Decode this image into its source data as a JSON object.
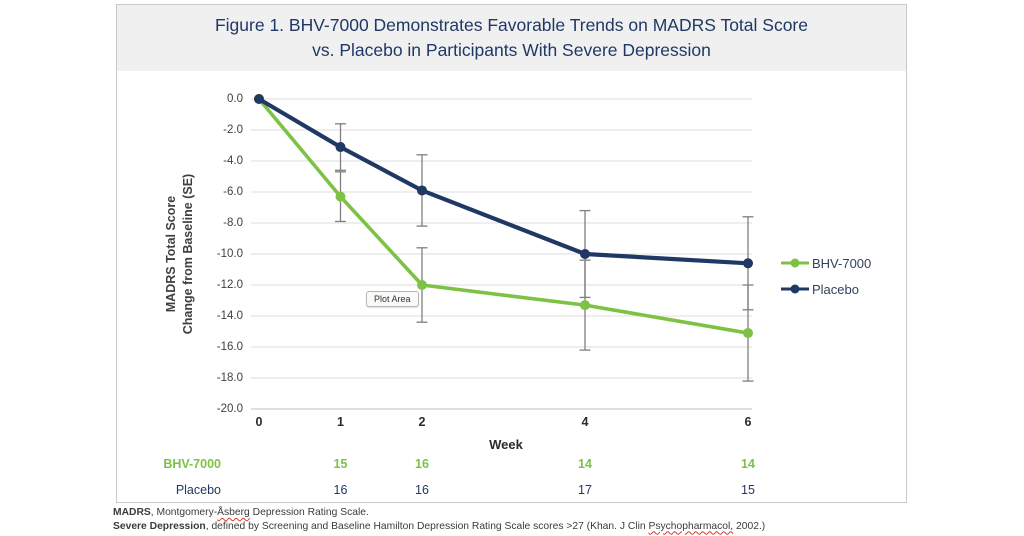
{
  "figure": {
    "title_line1": "Figure 1. BHV-7000 Demonstrates Favorable Trends on MADRS Total Score",
    "title_line2": "vs. Placebo in Participants With Severe Depression"
  },
  "plot_area_tooltip": "Plot Area",
  "chart_data": {
    "type": "line",
    "x": [
      0,
      1,
      2,
      4,
      6
    ],
    "xlabel": "Week",
    "ylabel_line1": "MADRS Total Score",
    "ylabel_line2": "Change from Baseline (SE)",
    "ylim": [
      -20,
      0
    ],
    "ytick_step": 2,
    "grid": "horizontal",
    "legend_position": "right",
    "error_bars": "SE",
    "series": [
      {
        "name": "BHV-7000",
        "color": "#7DC244",
        "values": [
          0,
          -6.3,
          -12.0,
          -13.3,
          -15.1
        ],
        "se": [
          0,
          1.6,
          2.4,
          2.9,
          3.1
        ]
      },
      {
        "name": "Placebo",
        "color": "#1F3864",
        "values": [
          0,
          -3.1,
          -5.9,
          -10.0,
          -10.6
        ],
        "se": [
          0,
          1.5,
          2.3,
          2.8,
          3.0
        ]
      }
    ]
  },
  "counts_table": {
    "weeks": [
      1,
      2,
      4,
      6
    ],
    "rows": [
      {
        "label": "BHV-7000",
        "color": "#7DC244",
        "bold": true,
        "values": [
          15,
          16,
          14,
          14
        ]
      },
      {
        "label": "Placebo",
        "color": "#1F3864",
        "bold": false,
        "values": [
          16,
          16,
          17,
          15
        ]
      }
    ]
  },
  "footnotes": [
    {
      "parts": [
        {
          "text": "MADRS",
          "bold": true
        },
        {
          "text": ", Montgomery-"
        },
        {
          "text": "Åsberg",
          "wavy": true
        },
        {
          "text": " Depression Rating Scale."
        }
      ]
    },
    {
      "parts": [
        {
          "text": "Severe Depression",
          "bold": true
        },
        {
          "text": ", defined by Screening and Baseline Hamilton Depression Rating Scale scores >27 (Khan. J Clin "
        },
        {
          "text": "Psychopharmacol,",
          "wavy": true
        },
        {
          "text": " 2002.)"
        }
      ]
    }
  ],
  "colors": {
    "title": "#1F3864",
    "grid": "#DCDCDC",
    "axis_line": "#BFBFBF",
    "error_bar": "#7F7F7F",
    "panel_border": "#C9C9C9",
    "title_band_bg": "#F0F0F1",
    "bhv_green": "#7DC244",
    "placebo_navy": "#1F3864"
  }
}
